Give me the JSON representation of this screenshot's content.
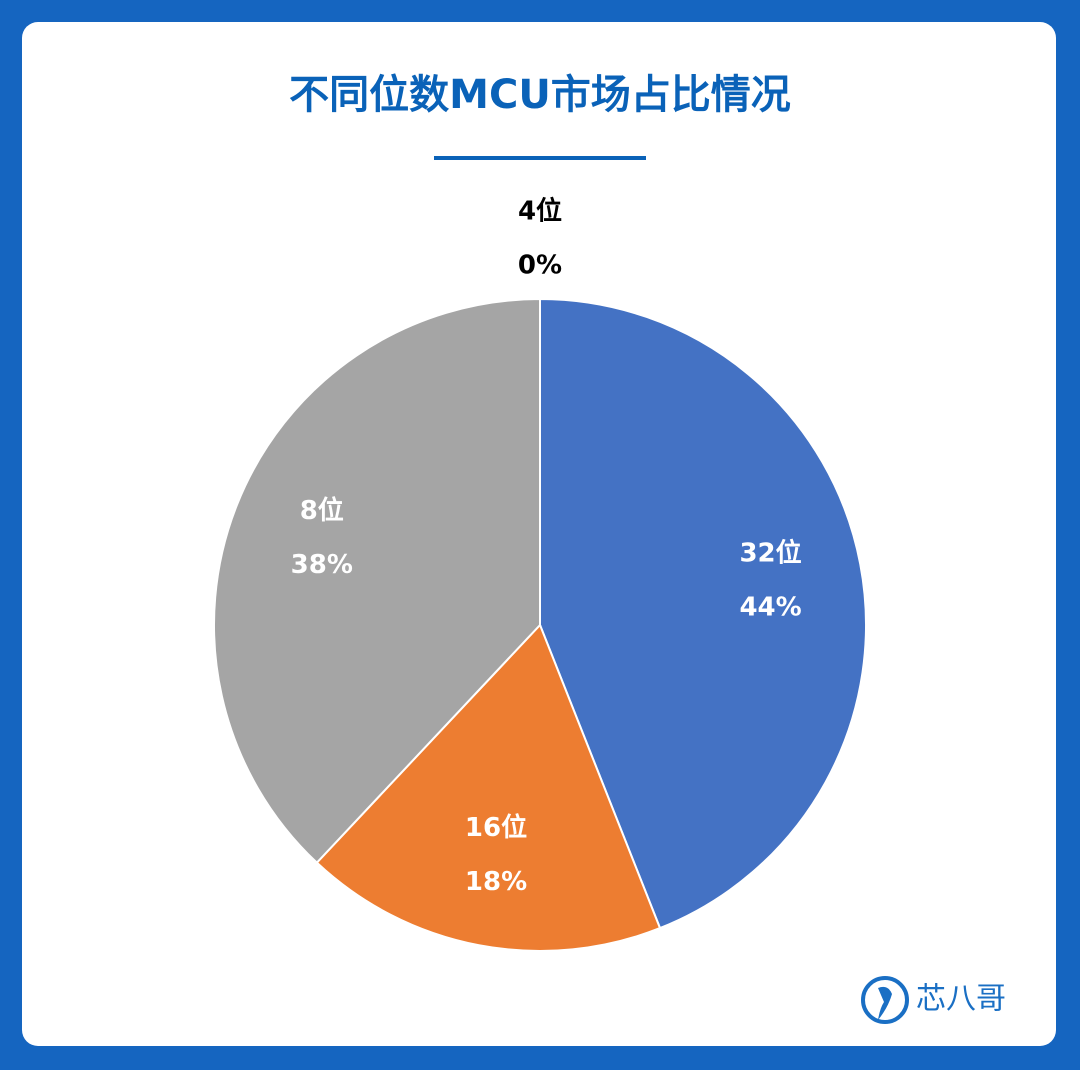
{
  "chart_data": {
    "type": "pie",
    "title": "不同位数MCU市场占比情况",
    "categories": [
      "32位",
      "16位",
      "8位",
      "4位"
    ],
    "values": [
      44,
      18,
      38,
      0
    ],
    "value_labels": [
      "44%",
      "18%",
      "38%",
      "0%"
    ],
    "colors": [
      "#4472c4",
      "#ed7d31",
      "#a5a5a5",
      "#ffc000"
    ],
    "brand": "芯八哥"
  }
}
